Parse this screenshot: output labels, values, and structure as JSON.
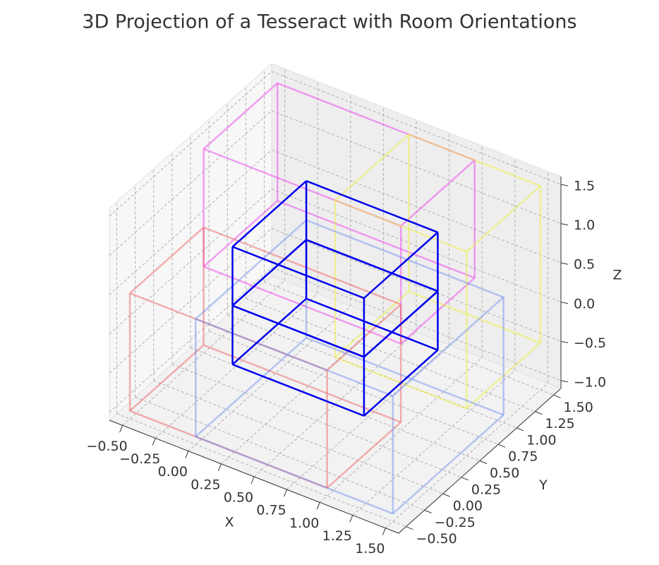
{
  "chart_data": {
    "type": "wireframe3d",
    "title": "3D Projection of a Tesseract with Room Orientations",
    "xlabel": "X",
    "ylabel": "Y",
    "zlabel": "Z",
    "xlim": [
      -0.6,
      1.6
    ],
    "ylim": [
      -0.6,
      1.6
    ],
    "zlim": [
      -1.1,
      1.6
    ],
    "xticks": [
      {
        "value": -0.5,
        "label": "−0.50"
      },
      {
        "value": -0.25,
        "label": "−0.25"
      },
      {
        "value": 0,
        "label": "0.00"
      },
      0.25,
      {
        "value": 0.5,
        "label": "0.50"
      },
      0.75,
      {
        "value": 1,
        "label": "1.00"
      },
      1.25,
      {
        "value": 1.5,
        "label": "1.50"
      }
    ],
    "yticks": [
      {
        "value": -0.5,
        "label": "−0.50"
      },
      {
        "value": -0.25,
        "label": "−0.25"
      },
      {
        "value": 0,
        "label": "0.00"
      },
      0.25,
      {
        "value": 0.5,
        "label": "0.50"
      },
      0.75,
      {
        "value": 1,
        "label": "1.00"
      },
      1.25,
      {
        "value": 1.5,
        "label": "1.50"
      }
    ],
    "zticks": [
      {
        "value": -1,
        "label": "−1.0"
      },
      {
        "value": -0.5,
        "label": "−0.5"
      },
      {
        "value": 0,
        "label": "0.0"
      },
      0.5,
      {
        "value": 1,
        "label": "1.0"
      },
      1.5
    ],
    "grid": true,
    "boxes": [
      {
        "min": [
          -0.5,
          0.5,
          0
        ],
        "max": [
          1,
          1.5,
          1.5
        ],
        "color": "#ee44ee",
        "opacity": 0.5
      },
      {
        "min": [
          0.5,
          0.5,
          -0.5
        ],
        "max": [
          1.5,
          1.5,
          1.5
        ],
        "color": "#eeee44",
        "opacity": 0.5
      },
      {
        "min": [
          -0.5,
          -0.5,
          -1
        ],
        "max": [
          1,
          0.5,
          0.5
        ],
        "color": "#ee6666",
        "opacity": 0.5
      },
      {
        "min": [
          0,
          -0.5,
          -1
        ],
        "max": [
          1.5,
          1,
          0.5
        ],
        "color": "#6688ee",
        "opacity": 0.45
      },
      {
        "min": [
          0,
          0,
          -0.5
        ],
        "max": [
          1,
          1,
          0.25
        ],
        "color": "#0000ee",
        "opacity": 1
      },
      {
        "min": [
          0,
          0,
          0.25
        ],
        "max": [
          1,
          1,
          1
        ],
        "color": "#0000ee",
        "opacity": 1
      }
    ]
  }
}
